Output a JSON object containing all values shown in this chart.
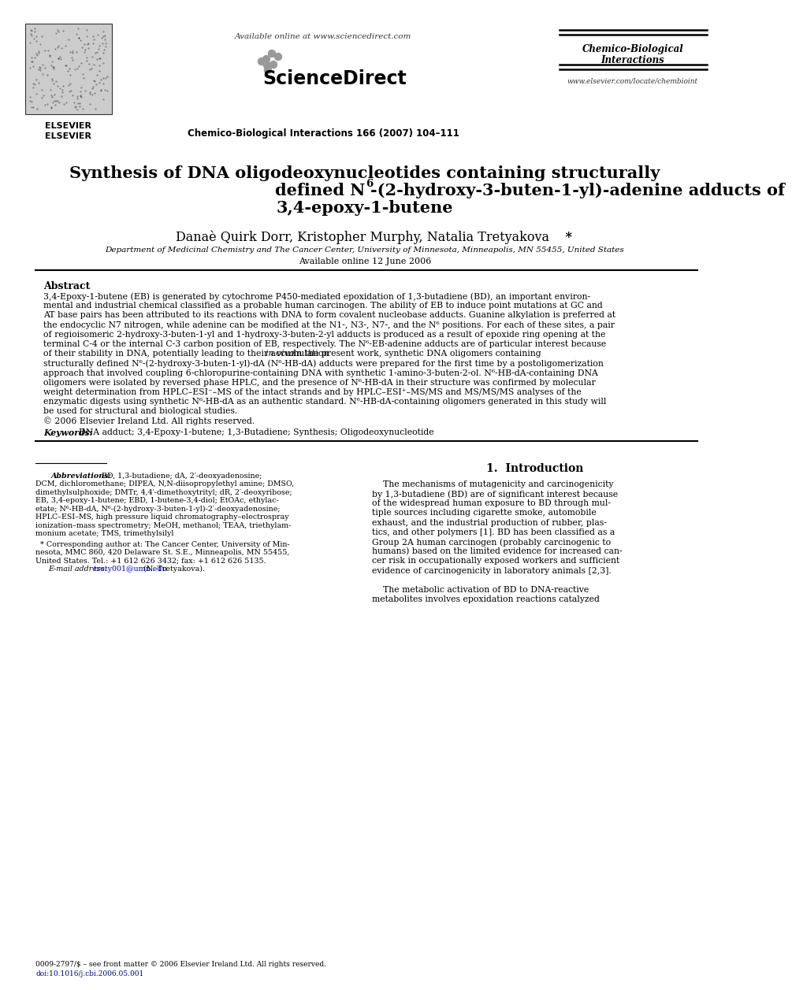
{
  "bg_color": "#ffffff",
  "available_online_header": "Available online at www.sciencedirect.com",
  "sciencedirect_text": "ScienceDirect",
  "journal_name_line1": "Chemico-Biological",
  "journal_name_line2": "Interactions",
  "journal_citation": "Chemico-Biological Interactions 166 (2007) 104–111",
  "journal_url": "www.elsevier.com/locate/chembioint",
  "elsevier_text": "ELSEVIER",
  "title_line1": "Synthesis of DNA oligodeoxynucleotides containing structurally",
  "title_line2_pre": "defined N",
  "title_line2_sup": "6",
  "title_line2_post": "-(2-hydroxy-3-buten-1-yl)-adenine adducts of",
  "title_line3": "3,4-epoxy-1-butene",
  "authors_pre": "Danaè Quirk Dorr, Kristopher Murphy, Natalia Tretyakova ",
  "authors_star": "*",
  "affiliation": "Department of Medicinal Chemistry and The Cancer Center, University of Minnesota, Minneapolis, MN 55455, United States",
  "available_online_date": "Available online 12 June 2006",
  "abstract_title": "Abstract",
  "abstract_lines": [
    "3,4-Epoxy-1-butene (EB) is generated by cytochrome P450-mediated epoxidation of 1,3-butadiene (BD), an important environ-",
    "mental and industrial chemical classified as a probable human carcinogen. The ability of EB to induce point mutations at GC and",
    "AT base pairs has been attributed to its reactions with DNA to form covalent nucleobase adducts. Guanine alkylation is preferred at",
    "the endocyclic N7 nitrogen, while adenine can be modified at the N1-, N3-, N7-, and the N⁶ positions. For each of these sites, a pair",
    "of regioisomeric 2-hydroxy-3-buten-1-yl and 1-hydroxy-3-buten-2-yl adducts is produced as a result of epoxide ring opening at the",
    "terminal C-4 or the internal C-3 carbon position of EB, respectively. The N⁶-EB-adenine adducts are of particular interest because",
    "of their stability in DNA, potentially leading to their accumulation ",
    "in vivo",
    ". In the present work, synthetic DNA oligomers containing",
    "structurally defined N⁶-(2-hydroxy-3-buten-1-yl)-dA (N⁶-HB-dA) adducts were prepared for the first time by a postoligomerization",
    "approach that involved coupling 6-chloropurine-containing DNA with synthetic 1-amino-3-buten-2-ol. N⁶-HB-dA-containing DNA",
    "oligomers were isolated by reversed phase HPLC, and the presence of N⁶-HB-dA in their structure was confirmed by molecular",
    "weight determination from HPLC–ESI⁻–MS of the intact strands and by HPLC–ESI⁺–MS/MS and MS/MS/MS analyses of the",
    "enzymatic digests using synthetic N⁶-HB-dA as an authentic standard. N⁶-HB-dA-containing oligomers generated in this study will",
    "be used for structural and biological studies.",
    "© 2006 Elsevier Ireland Ltd. All rights reserved."
  ],
  "keywords_label": "Keywords:",
  "keywords_text": "  DNA adduct; 3,4-Epoxy-1-butene; 1,3-Butadiene; Synthesis; Oligodeoxynucleotide",
  "section1_title": "1.  Introduction",
  "intro_lines": [
    "    The mechanisms of mutagenicity and carcinogenicity",
    "by 1,3-butadiene (BD) are of significant interest because",
    "of the widespread human exposure to BD through mul-",
    "tiple sources including cigarette smoke, automobile",
    "exhaust, and the industrial production of rubber, plas-",
    "tics, and other polymers [1]. BD has been classified as a",
    "Group 2A human carcinogen (probably carcinogenic to",
    "humans) based on the limited evidence for increased can-",
    "cer risk in occupationally exposed workers and sufficient",
    "evidence of carcinogenicity in laboratory animals [2,3].",
    "",
    "    The metabolic activation of BD to DNA-reactive",
    "metabolites involves epoxidation reactions catalyzed"
  ],
  "abbrev_italic": "Abbreviations:",
  "abbrev_lines": [
    "    BD, 1,3-butadiene; dA, 2′-deoxyadenosine;",
    "DCM, dichloromethane; DIPEA, N,N-diisopropylethyl amine; DMSO,",
    "dimethylsulphoxide; DMTr, 4,4′-dimethoxytrityl; dR, 2′-deoxyribose;",
    "EB, 3,4-epoxy-1-butene; EBD, 1-butene-3,4-diol; EtOAc, ethylac-",
    "etate; N⁶-HB-dA, N⁶-(2-hydroxy-3-buten-1-yl)-2′-deoxyadenosine;",
    "HPLC–ESI–MS, high pressure liquid chromatography–electrospray",
    "ionization–mass spectrometry; MeOH, methanol; TEAA, triethylam-",
    "monium acetate; TMS, trimethylsilyl"
  ],
  "corr_lines": [
    "  * Corresponding author at: The Cancer Center, University of Min-",
    "nesota, MMC 860, 420 Delaware St. S.E., Minneapolis, MN 55455,",
    "United States. Tel.: +1 612 626 3432; fax: +1 612 626 5135."
  ],
  "email_italic": "E-mail address:",
  "email_link": " trety001@umn.edu",
  "email_rest": " (N. Tretyakova).",
  "footer_issn": "0009-2797/$ – see front matter © 2006 Elsevier Ireland Ltd. All rights reserved.",
  "footer_doi": "doi:10.1016/j.cbi.2006.05.001"
}
